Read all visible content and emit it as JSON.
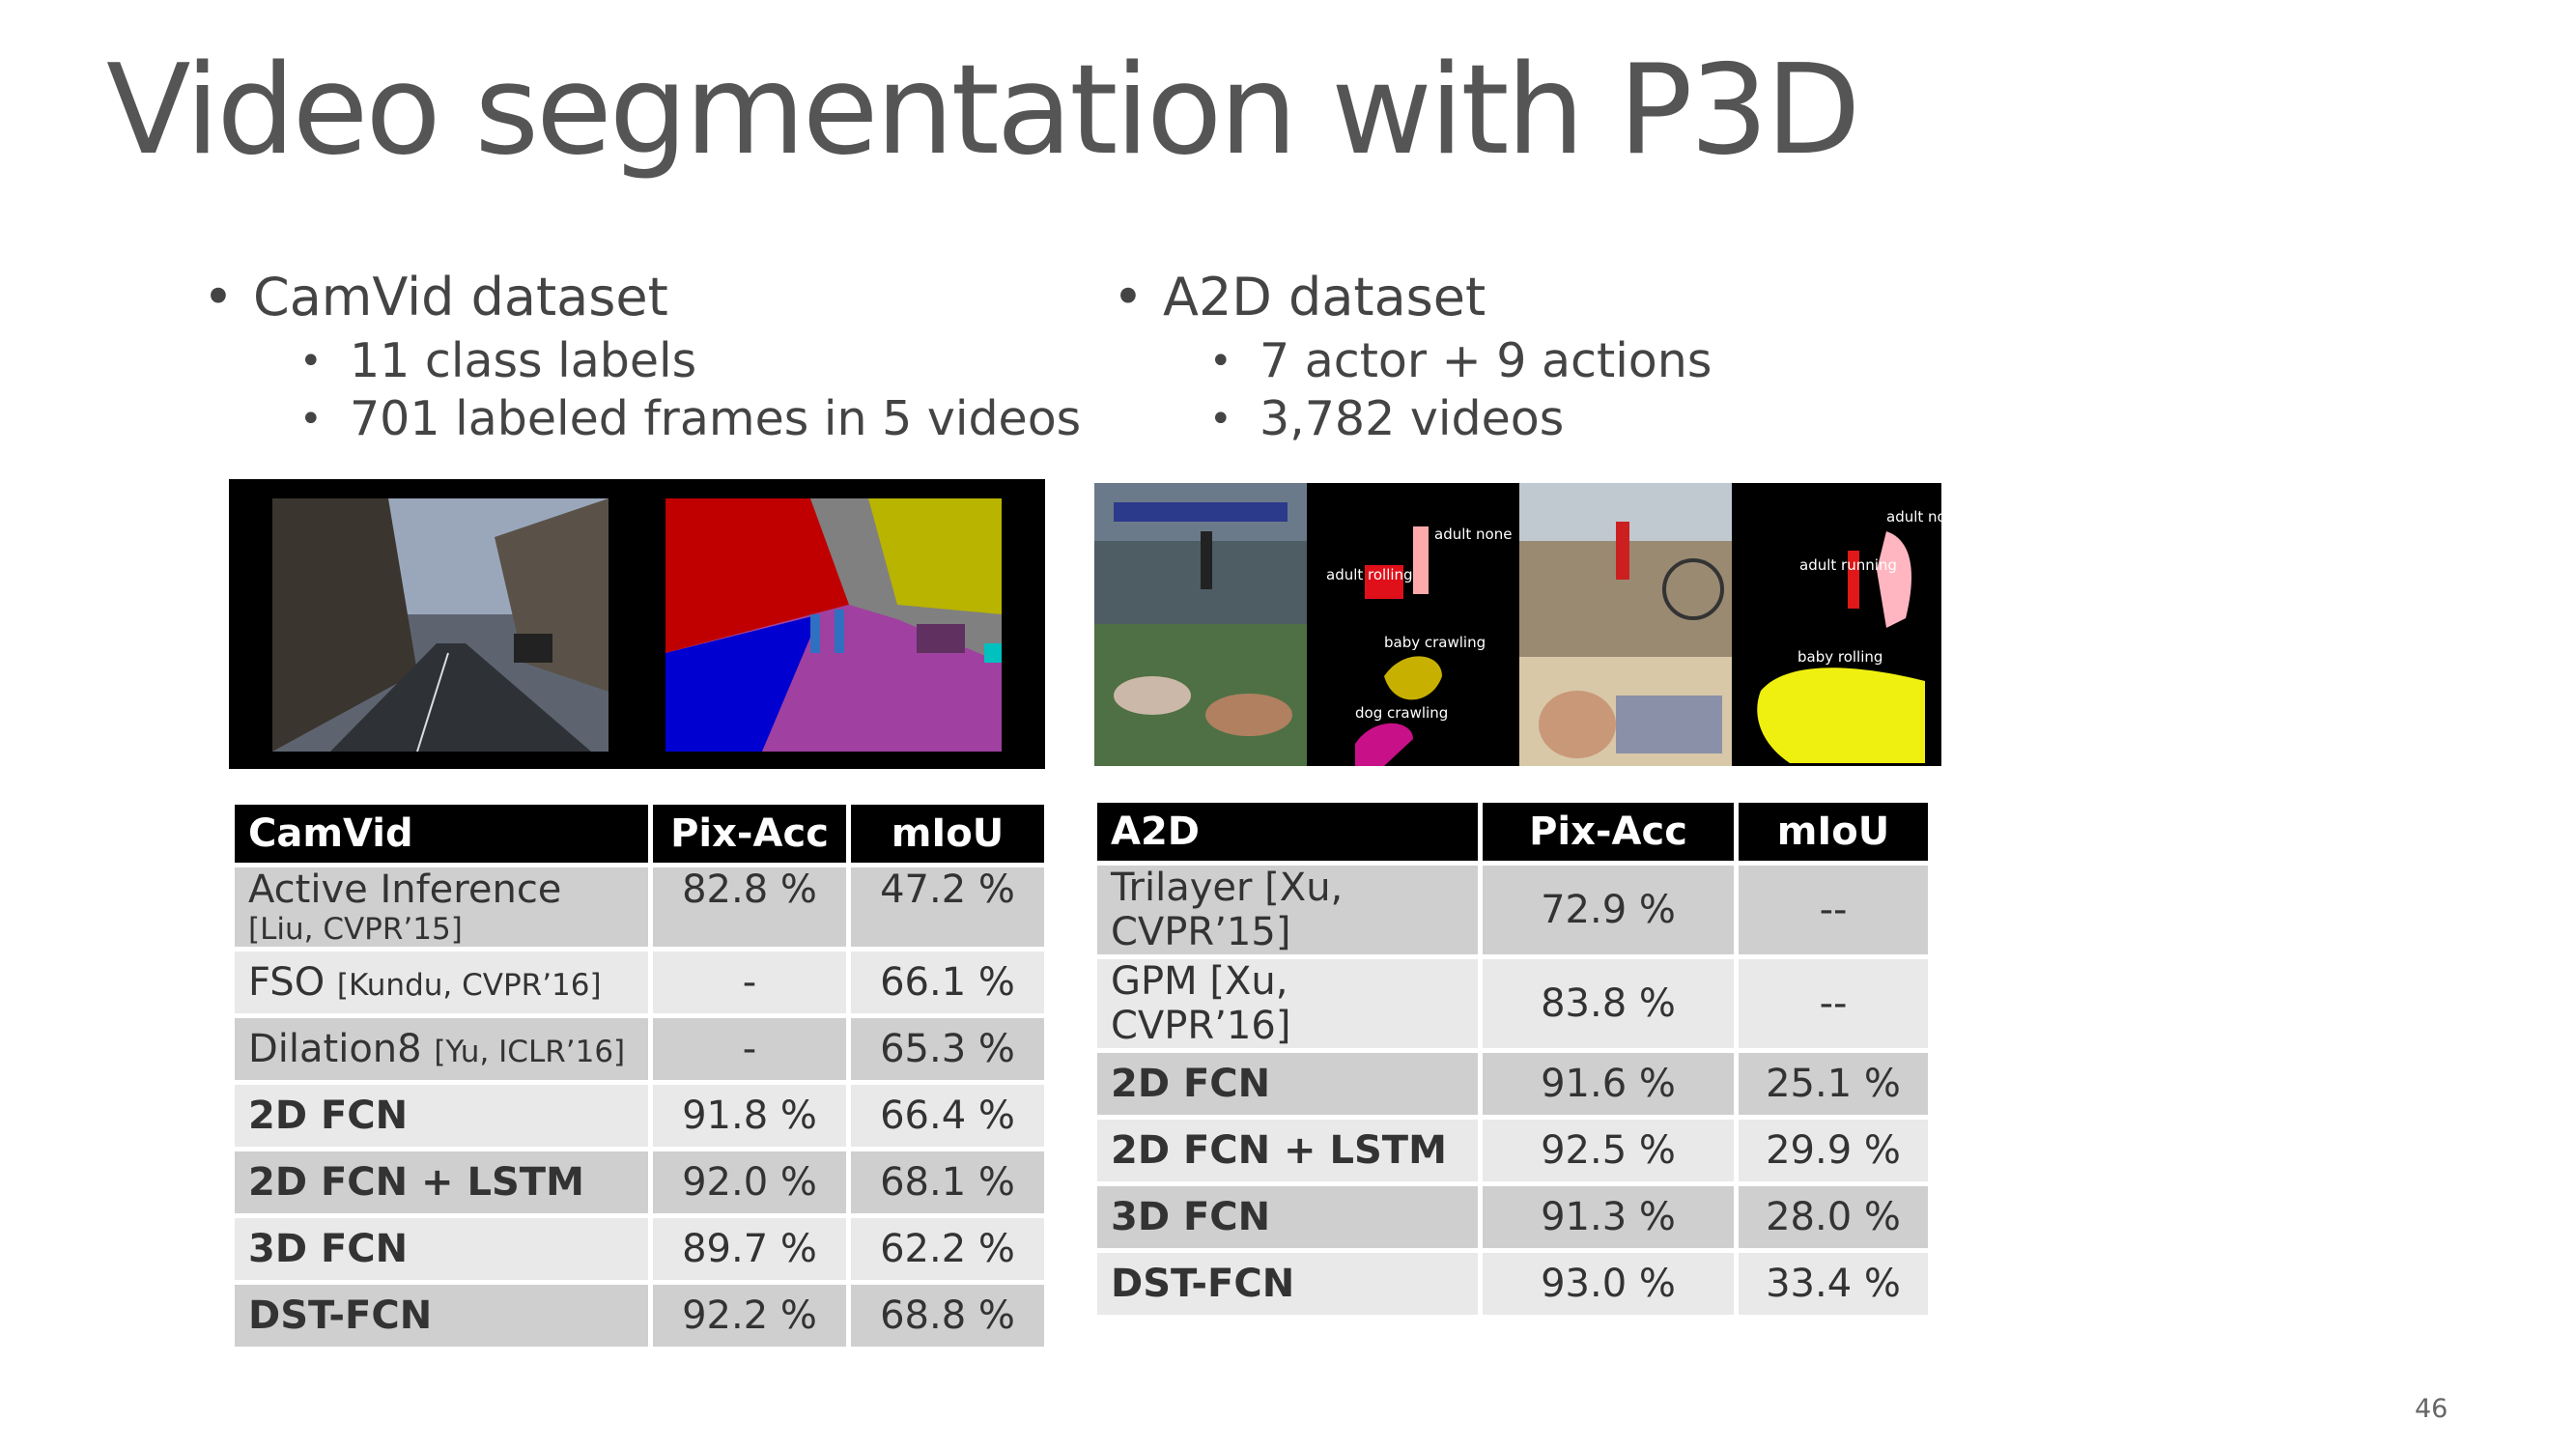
{
  "slide": {
    "title": "Video segmentation with P3D",
    "page_number": "46"
  },
  "left": {
    "heading": "CamVid dataset",
    "bullets": [
      "11 class labels",
      "701 labeled frames in 5 videos"
    ]
  },
  "right": {
    "heading": "A2D dataset",
    "bullets": [
      "7 actor + 9 actions",
      "3,782 videos"
    ]
  },
  "a2d_image_labels": {
    "adult_none": "adult none",
    "adult_rolling": "adult rolling",
    "baby_crawling": "baby crawling",
    "dog_crawling": "dog crawling",
    "adult_none_2": "adult none",
    "adult_running": "adult running",
    "baby_rolling": "baby rolling"
  },
  "camvid_table": {
    "headers": [
      "CamVid",
      "Pix-Acc",
      "mIoU"
    ],
    "rows": [
      {
        "method": "Active Inference",
        "cite": "[Liu, CVPR’15]",
        "pix": "82.8 %",
        "miou": "47.2 %",
        "bold": false
      },
      {
        "method": "FSO",
        "cite": "[Kundu, CVPR’16]",
        "pix": "-",
        "miou": "66.1 %",
        "bold": false
      },
      {
        "method": "Dilation8",
        "cite": "[Yu, ICLR’16]",
        "pix": "-",
        "miou": "65.3 %",
        "bold": false
      },
      {
        "method": "2D FCN",
        "cite": "",
        "pix": "91.8 %",
        "miou": "66.4 %",
        "bold": true
      },
      {
        "method": "2D FCN + LSTM",
        "cite": "",
        "pix": "92.0 %",
        "miou": "68.1 %",
        "bold": true
      },
      {
        "method": "3D FCN",
        "cite": "",
        "pix": "89.7 %",
        "miou": "62.2 %",
        "bold": true
      },
      {
        "method": "DST-FCN",
        "cite": "",
        "pix": "92.2 %",
        "miou": "68.8 %",
        "bold": true
      }
    ]
  },
  "a2d_table": {
    "headers": [
      "A2D",
      "Pix-Acc",
      "mIoU"
    ],
    "rows": [
      {
        "method": "Trilayer [Xu, CVPR’15]",
        "pix": "72.9 %",
        "miou": "--",
        "bold": false
      },
      {
        "method": "GPM [Xu, CVPR’16]",
        "pix": "83.8 %",
        "miou": "--",
        "bold": false
      },
      {
        "method": "2D FCN",
        "pix": "91.6 %",
        "miou": "25.1 %",
        "bold": true
      },
      {
        "method": "2D FCN + LSTM",
        "pix": "92.5 %",
        "miou": "29.9 %",
        "bold": true
      },
      {
        "method": "3D FCN",
        "pix": "91.3 %",
        "miou": "28.0 %",
        "bold": true
      },
      {
        "method": "DST-FCN",
        "pix": "93.0 %",
        "miou": "33.4 %",
        "bold": true
      }
    ]
  }
}
